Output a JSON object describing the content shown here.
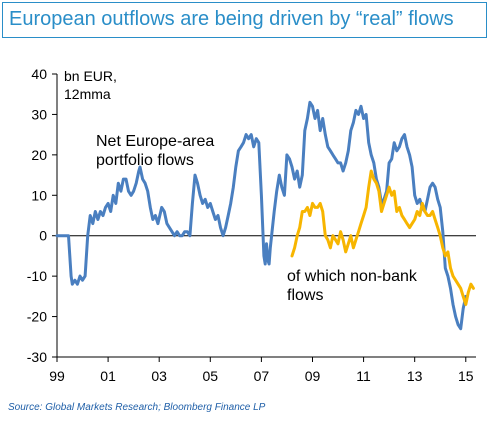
{
  "title": "European outflows are being driven by “real” flows",
  "source": "Source:  Global Markets Research; Bloomberg Finance LP",
  "colors": {
    "title": "#2a8ec8",
    "series_total": "#4a7fc0",
    "series_nonbank": "#f7b500",
    "source": "#1f5fa8"
  },
  "chart_data": {
    "type": "line",
    "ylabel": "bn EUR,\n12mma",
    "ylabel_lines": [
      "bn EUR,",
      "12mma"
    ],
    "ylim": [
      -30,
      40
    ],
    "yticks": [
      40,
      30,
      20,
      10,
      0,
      -10,
      -20,
      -30
    ],
    "xlim": [
      1999.0,
      2015.4
    ],
    "xticks": [
      {
        "value": 1999,
        "label": "99"
      },
      {
        "value": 2001,
        "label": "01"
      },
      {
        "value": 2003,
        "label": "03"
      },
      {
        "value": 2005,
        "label": "05"
      },
      {
        "value": 2007,
        "label": "07"
      },
      {
        "value": 2009,
        "label": "09"
      },
      {
        "value": 2011,
        "label": "11"
      },
      {
        "value": 2013,
        "label": "13"
      },
      {
        "value": 2015,
        "label": "15"
      }
    ],
    "grid": false,
    "series": [
      {
        "name": "Net Europe-area portfolio flows",
        "label_lines": [
          "Net Europe-area",
          "portfolio flows"
        ],
        "color": "#4a7fc0",
        "points": [
          [
            1999.0,
            0
          ],
          [
            1999.3,
            0
          ],
          [
            1999.45,
            0
          ],
          [
            1999.55,
            -10
          ],
          [
            1999.6,
            -12
          ],
          [
            1999.7,
            -11
          ],
          [
            1999.8,
            -12
          ],
          [
            1999.9,
            -10
          ],
          [
            2000.0,
            -11
          ],
          [
            2000.1,
            -10
          ],
          [
            2000.2,
            0
          ],
          [
            2000.3,
            5
          ],
          [
            2000.4,
            3
          ],
          [
            2000.5,
            6
          ],
          [
            2000.6,
            4
          ],
          [
            2000.7,
            6
          ],
          [
            2000.8,
            5
          ],
          [
            2000.9,
            7
          ],
          [
            2001.0,
            8
          ],
          [
            2001.1,
            6
          ],
          [
            2001.2,
            10
          ],
          [
            2001.3,
            8
          ],
          [
            2001.4,
            13
          ],
          [
            2001.5,
            11
          ],
          [
            2001.6,
            14
          ],
          [
            2001.7,
            14
          ],
          [
            2001.8,
            11
          ],
          [
            2001.9,
            10
          ],
          [
            2002.0,
            11
          ],
          [
            2002.1,
            13
          ],
          [
            2002.2,
            16
          ],
          [
            2002.25,
            17
          ],
          [
            2002.35,
            14
          ],
          [
            2002.45,
            13
          ],
          [
            2002.55,
            11
          ],
          [
            2002.65,
            7
          ],
          [
            2002.75,
            4
          ],
          [
            2002.85,
            5
          ],
          [
            2002.95,
            3
          ],
          [
            2003.1,
            7
          ],
          [
            2003.2,
            6
          ],
          [
            2003.3,
            3
          ],
          [
            2003.4,
            2
          ],
          [
            2003.5,
            1
          ],
          [
            2003.6,
            0
          ],
          [
            2003.7,
            1
          ],
          [
            2003.8,
            0
          ],
          [
            2003.9,
            0
          ],
          [
            2004.0,
            1
          ],
          [
            2004.1,
            1
          ],
          [
            2004.2,
            0
          ],
          [
            2004.3,
            8
          ],
          [
            2004.4,
            15
          ],
          [
            2004.5,
            13
          ],
          [
            2004.6,
            10
          ],
          [
            2004.7,
            8
          ],
          [
            2004.8,
            9
          ],
          [
            2004.9,
            7
          ],
          [
            2005.0,
            8
          ],
          [
            2005.1,
            6
          ],
          [
            2005.2,
            4
          ],
          [
            2005.3,
            5
          ],
          [
            2005.4,
            2
          ],
          [
            2005.5,
            0
          ],
          [
            2005.6,
            2
          ],
          [
            2005.7,
            5
          ],
          [
            2005.8,
            8
          ],
          [
            2005.9,
            12
          ],
          [
            2006.0,
            17
          ],
          [
            2006.1,
            21
          ],
          [
            2006.2,
            22
          ],
          [
            2006.3,
            23
          ],
          [
            2006.4,
            25
          ],
          [
            2006.5,
            24
          ],
          [
            2006.6,
            25
          ],
          [
            2006.7,
            22
          ],
          [
            2006.8,
            24
          ],
          [
            2006.9,
            23
          ],
          [
            2007.0,
            10
          ],
          [
            2007.1,
            -5
          ],
          [
            2007.15,
            -7
          ],
          [
            2007.2,
            -2
          ],
          [
            2007.25,
            -6
          ],
          [
            2007.3,
            -7
          ],
          [
            2007.35,
            -3
          ],
          [
            2007.4,
            0
          ],
          [
            2007.5,
            6
          ],
          [
            2007.6,
            11
          ],
          [
            2007.7,
            15
          ],
          [
            2007.8,
            12
          ],
          [
            2007.9,
            10
          ],
          [
            2008.0,
            20
          ],
          [
            2008.1,
            19
          ],
          [
            2008.2,
            17
          ],
          [
            2008.3,
            14
          ],
          [
            2008.4,
            16
          ],
          [
            2008.5,
            12
          ],
          [
            2008.6,
            15
          ],
          [
            2008.7,
            26
          ],
          [
            2008.8,
            29
          ],
          [
            2008.9,
            33
          ],
          [
            2009.0,
            32
          ],
          [
            2009.1,
            29
          ],
          [
            2009.2,
            31
          ],
          [
            2009.3,
            26
          ],
          [
            2009.4,
            29
          ],
          [
            2009.5,
            25
          ],
          [
            2009.6,
            22
          ],
          [
            2009.7,
            21
          ],
          [
            2009.8,
            20
          ],
          [
            2009.9,
            19
          ],
          [
            2010.0,
            18
          ],
          [
            2010.1,
            18
          ],
          [
            2010.2,
            16
          ],
          [
            2010.3,
            18
          ],
          [
            2010.4,
            21
          ],
          [
            2010.5,
            26
          ],
          [
            2010.6,
            28
          ],
          [
            2010.7,
            31
          ],
          [
            2010.8,
            30
          ],
          [
            2010.9,
            32
          ],
          [
            2011.0,
            29
          ],
          [
            2011.1,
            30
          ],
          [
            2011.2,
            23
          ],
          [
            2011.3,
            20
          ],
          [
            2011.4,
            18
          ],
          [
            2011.5,
            14
          ],
          [
            2011.6,
            12
          ],
          [
            2011.7,
            8
          ],
          [
            2011.8,
            9
          ],
          [
            2011.9,
            11
          ],
          [
            2012.0,
            18
          ],
          [
            2012.1,
            19
          ],
          [
            2012.2,
            23
          ],
          [
            2012.3,
            21
          ],
          [
            2012.4,
            22
          ],
          [
            2012.5,
            24
          ],
          [
            2012.6,
            25
          ],
          [
            2012.7,
            22
          ],
          [
            2012.8,
            20
          ],
          [
            2012.9,
            17
          ],
          [
            2013.0,
            10
          ],
          [
            2013.1,
            8
          ],
          [
            2013.2,
            9
          ],
          [
            2013.3,
            7
          ],
          [
            2013.4,
            6
          ],
          [
            2013.5,
            9
          ],
          [
            2013.6,
            12
          ],
          [
            2013.7,
            13
          ],
          [
            2013.8,
            12
          ],
          [
            2013.9,
            9
          ],
          [
            2014.0,
            7
          ],
          [
            2014.1,
            1
          ],
          [
            2014.2,
            -8
          ],
          [
            2014.3,
            -10
          ],
          [
            2014.4,
            -13
          ],
          [
            2014.5,
            -17
          ],
          [
            2014.6,
            -20
          ],
          [
            2014.7,
            -22
          ],
          [
            2014.8,
            -23
          ],
          [
            2014.9,
            -18
          ],
          [
            2015.0,
            -15
          ]
        ]
      },
      {
        "name": "of which non-bank flows",
        "label_lines": [
          "of which non-bank",
          "flows"
        ],
        "color": "#f7b500",
        "points": [
          [
            2008.2,
            -5
          ],
          [
            2008.3,
            -3
          ],
          [
            2008.4,
            0
          ],
          [
            2008.5,
            2
          ],
          [
            2008.6,
            6
          ],
          [
            2008.7,
            6
          ],
          [
            2008.8,
            7
          ],
          [
            2008.9,
            5
          ],
          [
            2009.0,
            8
          ],
          [
            2009.1,
            7
          ],
          [
            2009.2,
            7
          ],
          [
            2009.3,
            8
          ],
          [
            2009.4,
            6
          ],
          [
            2009.5,
            0
          ],
          [
            2009.6,
            -1
          ],
          [
            2009.7,
            -3
          ],
          [
            2009.8,
            0
          ],
          [
            2009.9,
            -1
          ],
          [
            2010.0,
            -2
          ],
          [
            2010.1,
            1
          ],
          [
            2010.2,
            -1
          ],
          [
            2010.3,
            -4
          ],
          [
            2010.4,
            -2
          ],
          [
            2010.5,
            0
          ],
          [
            2010.6,
            -3
          ],
          [
            2010.7,
            -1
          ],
          [
            2010.8,
            1
          ],
          [
            2010.9,
            3
          ],
          [
            2011.0,
            5
          ],
          [
            2011.1,
            7
          ],
          [
            2011.2,
            12
          ],
          [
            2011.3,
            16
          ],
          [
            2011.4,
            14
          ],
          [
            2011.5,
            13
          ],
          [
            2011.6,
            11
          ],
          [
            2011.7,
            6
          ],
          [
            2011.8,
            8
          ],
          [
            2011.9,
            10
          ],
          [
            2012.0,
            12
          ],
          [
            2012.1,
            10
          ],
          [
            2012.2,
            11
          ],
          [
            2012.3,
            6
          ],
          [
            2012.4,
            7
          ],
          [
            2012.5,
            5
          ],
          [
            2012.6,
            4
          ],
          [
            2012.7,
            3
          ],
          [
            2012.8,
            2
          ],
          [
            2012.9,
            3
          ],
          [
            2013.0,
            4
          ],
          [
            2013.1,
            6
          ],
          [
            2013.2,
            5
          ],
          [
            2013.3,
            8
          ],
          [
            2013.4,
            6
          ],
          [
            2013.5,
            5
          ],
          [
            2013.6,
            5
          ],
          [
            2013.7,
            6
          ],
          [
            2013.8,
            4
          ],
          [
            2013.9,
            2
          ],
          [
            2014.0,
            0
          ],
          [
            2014.1,
            -3
          ],
          [
            2014.2,
            -5
          ],
          [
            2014.3,
            -4
          ],
          [
            2014.4,
            -8
          ],
          [
            2014.5,
            -10
          ],
          [
            2014.6,
            -11
          ],
          [
            2014.7,
            -12
          ],
          [
            2014.8,
            -13
          ],
          [
            2014.9,
            -15
          ],
          [
            2015.0,
            -17
          ],
          [
            2015.1,
            -14
          ],
          [
            2015.2,
            -12
          ],
          [
            2015.3,
            -13
          ]
        ]
      }
    ]
  }
}
